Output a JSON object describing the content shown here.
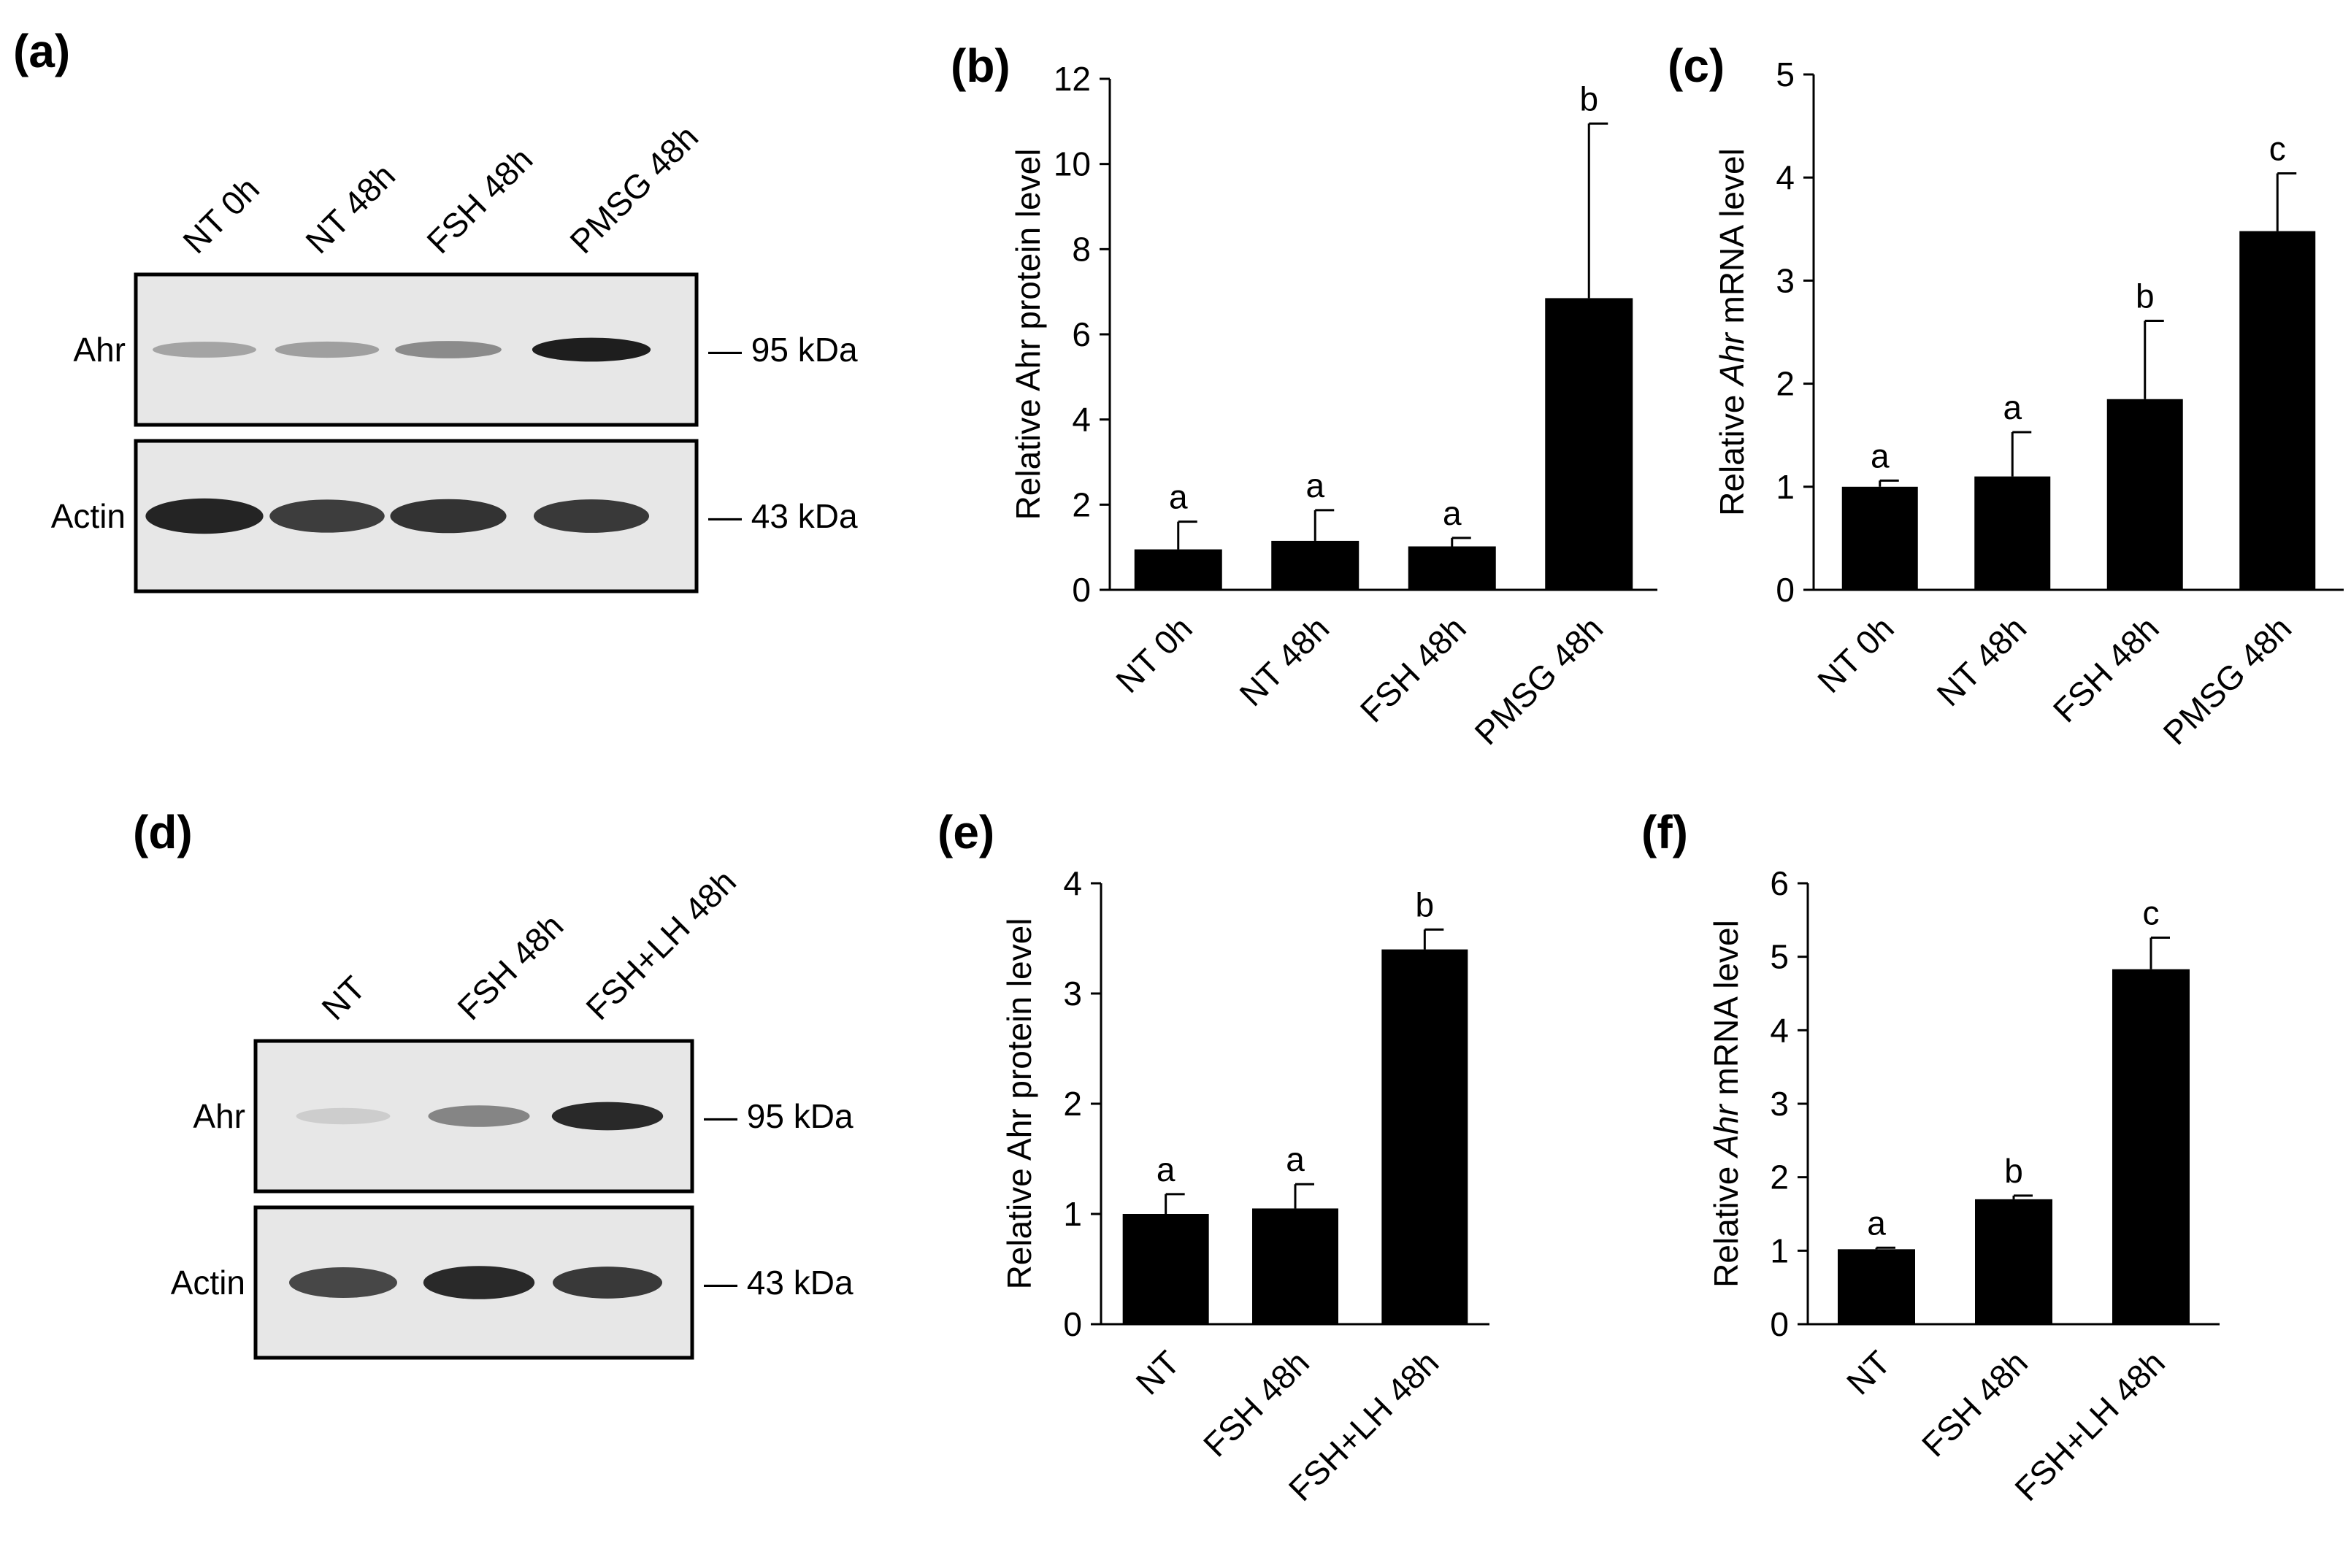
{
  "panels": {
    "a": "(a)",
    "b": "(b)",
    "c": "(c)",
    "d": "(d)",
    "e": "(e)",
    "f": "(f)"
  },
  "blots": [
    {
      "id": "a",
      "lanes": [
        "NT 0h",
        "NT 48h",
        "FSH 48h",
        "PMSG 48h"
      ],
      "rows": [
        {
          "label": "Ahr",
          "marker": "— 95 kDa",
          "intensity": [
            0.3,
            0.32,
            0.42,
            0.95
          ]
        },
        {
          "label": "Actin",
          "marker": "— 43 kDa",
          "intensity": [
            0.92,
            0.8,
            0.85,
            0.82
          ]
        }
      ]
    },
    {
      "id": "d",
      "lanes": [
        "NT",
        "FSH 48h",
        "FSH+LH 48h"
      ],
      "rows": [
        {
          "label": "Ahr",
          "marker": "— 95 kDa",
          "intensity": [
            0.1,
            0.45,
            0.9
          ]
        },
        {
          "label": "Actin",
          "marker": "— 43 kDa",
          "intensity": [
            0.75,
            0.9,
            0.82
          ]
        }
      ]
    }
  ],
  "chart_data": [
    {
      "id": "b",
      "type": "bar",
      "categories": [
        "NT 0h",
        "NT 48h",
        "FSH 48h",
        "PMSG 48h"
      ],
      "values": [
        0.95,
        1.15,
        1.02,
        6.85
      ],
      "errors": [
        0.65,
        0.72,
        0.2,
        4.1
      ],
      "significance": [
        "a",
        "a",
        "a",
        "b"
      ],
      "ylabel": "Relative Ahr protein level",
      "ylabel_italic": "",
      "ylim": [
        0,
        12
      ],
      "yticks": [
        0,
        2,
        4,
        6,
        8,
        10,
        12
      ],
      "bar_color": "#000000",
      "grid": false
    },
    {
      "id": "c",
      "type": "bar",
      "categories": [
        "NT 0h",
        "NT 48h",
        "FSH 48h",
        "PMSG 48h"
      ],
      "values": [
        1.0,
        1.1,
        1.85,
        3.48
      ],
      "errors": [
        0.06,
        0.43,
        0.76,
        0.56
      ],
      "significance": [
        "a",
        "a",
        "b",
        "c"
      ],
      "ylabel_prefix": "Relative ",
      "ylabel_italic": "Ahr",
      "ylabel_suffix": " mRNA level",
      "ylim": [
        0,
        5
      ],
      "yticks": [
        0,
        1,
        2,
        3,
        4,
        5
      ],
      "bar_color": "#000000",
      "grid": false
    },
    {
      "id": "e",
      "type": "bar",
      "categories": [
        "NT",
        "FSH 48h",
        "FSH+LH 48h"
      ],
      "values": [
        1.0,
        1.05,
        3.4
      ],
      "errors": [
        0.18,
        0.22,
        0.18
      ],
      "significance": [
        "a",
        "a",
        "b"
      ],
      "ylabel": "Relative Ahr protein level",
      "ylabel_italic": "",
      "ylim": [
        0,
        4
      ],
      "yticks": [
        0,
        1,
        2,
        3,
        4
      ],
      "bar_color": "#000000",
      "grid": false
    },
    {
      "id": "f",
      "type": "bar",
      "categories": [
        "NT",
        "FSH 48h",
        "FSH+LH 48h"
      ],
      "values": [
        1.02,
        1.7,
        4.83
      ],
      "errors": [
        0.02,
        0.05,
        0.43
      ],
      "significance": [
        "a",
        "b",
        "c"
      ],
      "ylabel_prefix": "Relative ",
      "ylabel_italic": "Ahr",
      "ylabel_suffix": " mRNA level",
      "ylim": [
        0,
        6
      ],
      "yticks": [
        0,
        1,
        2,
        3,
        4,
        5,
        6
      ],
      "bar_color": "#000000",
      "grid": false
    }
  ]
}
